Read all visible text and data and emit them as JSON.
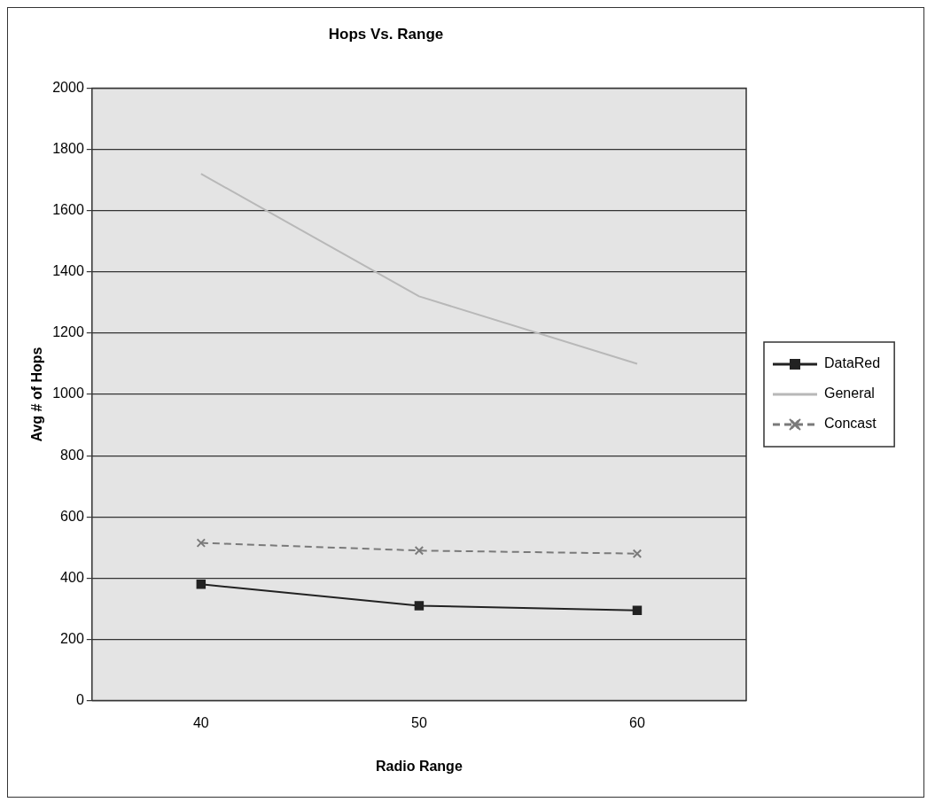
{
  "chart_data": {
    "type": "line",
    "title": "Hops Vs. Range",
    "xlabel": "Radio Range",
    "ylabel": "Avg # of Hops",
    "categories": [
      "40",
      "50",
      "60"
    ],
    "series": [
      {
        "name": "DataRed",
        "color": "#222222",
        "values": [
          380,
          310,
          295
        ],
        "marker": "square",
        "line_style": "solid"
      },
      {
        "name": "General",
        "color": "#b8b8b8",
        "values": [
          1720,
          1320,
          1100
        ],
        "marker": "none",
        "line_style": "solid"
      },
      {
        "name": "Concast",
        "color": "#7a7a7a",
        "values": [
          515,
          490,
          480
        ],
        "marker": "cross",
        "line_style": "dashed"
      }
    ],
    "ylim": [
      0,
      2000
    ],
    "yticks": [
      0,
      200,
      400,
      600,
      800,
      1000,
      1200,
      1400,
      1600,
      1800,
      2000
    ],
    "grid": "y",
    "legend": "right"
  }
}
